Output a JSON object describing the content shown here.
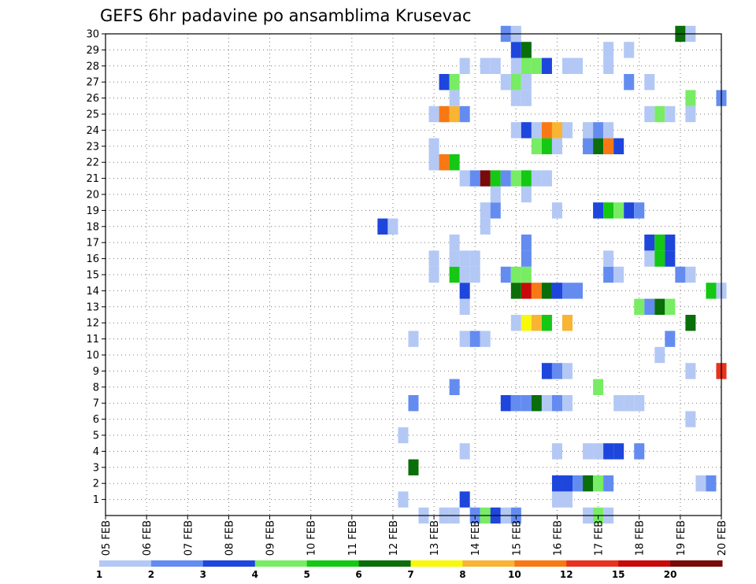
{
  "chart_data": {
    "type": "heatmap",
    "title": "GEFS 6hr padavine po ansamblima Krusevac",
    "x_tick_labels": [
      "05 FEB",
      "06 FEB",
      "07 FEB",
      "08 FEB",
      "09 FEB",
      "10 FEB",
      "11 FEB",
      "12 FEB",
      "13 FEB",
      "14 FEB",
      "15 FEB",
      "16 FEB",
      "17 FEB",
      "18 FEB",
      "19 FEB",
      "20 FEB"
    ],
    "y_tick_labels": [
      "1",
      "2",
      "3",
      "4",
      "5",
      "6",
      "7",
      "8",
      "9",
      "10",
      "11",
      "12",
      "13",
      "14",
      "15",
      "16",
      "17",
      "18",
      "19",
      "20",
      "21",
      "22",
      "23",
      "24",
      "25",
      "26",
      "27",
      "28",
      "29",
      "30"
    ],
    "x_unit": "6-hour step from 05 FEB 00Z",
    "xlim": [
      0,
      60
    ],
    "ylim": [
      0,
      30
    ],
    "grid": true,
    "legend": {
      "position": "bottom",
      "labels": [
        "1",
        "2",
        "3",
        "4",
        "5",
        "6",
        "7",
        "8",
        "10",
        "12",
        "15",
        "20"
      ],
      "colors": [
        "#b4c8f5",
        "#648cf0",
        "#1e46dc",
        "#78ec64",
        "#14c814",
        "#0a6e0a",
        "#f8f80a",
        "#f8b432",
        "#f87814",
        "#e6321e",
        "#c80a0a",
        "#780a0a"
      ]
    },
    "cells": [
      [
        31,
        0,
        0
      ],
      [
        33,
        0,
        0
      ],
      [
        34,
        0,
        0
      ],
      [
        36,
        0,
        1
      ],
      [
        37,
        0,
        3
      ],
      [
        38,
        0,
        2
      ],
      [
        39,
        0,
        0
      ],
      [
        40,
        0,
        1
      ],
      [
        47,
        0,
        0
      ],
      [
        48,
        0,
        3
      ],
      [
        49,
        0,
        0
      ],
      [
        29,
        1,
        0
      ],
      [
        35,
        1,
        2
      ],
      [
        44,
        1,
        0
      ],
      [
        45,
        1,
        0
      ],
      [
        44,
        2,
        2
      ],
      [
        45,
        2,
        2
      ],
      [
        46,
        2,
        1
      ],
      [
        47,
        2,
        5
      ],
      [
        48,
        2,
        3
      ],
      [
        49,
        2,
        1
      ],
      [
        58,
        2,
        0
      ],
      [
        59,
        2,
        1
      ],
      [
        30,
        3,
        5
      ],
      [
        35,
        4,
        0
      ],
      [
        44,
        4,
        0
      ],
      [
        47,
        4,
        0
      ],
      [
        48,
        4,
        0
      ],
      [
        49,
        4,
        2
      ],
      [
        50,
        4,
        2
      ],
      [
        52,
        4,
        1
      ],
      [
        29,
        5,
        0
      ],
      [
        57,
        6,
        0
      ],
      [
        30,
        7,
        1
      ],
      [
        39,
        7,
        2
      ],
      [
        40,
        7,
        1
      ],
      [
        41,
        7,
        1
      ],
      [
        42,
        7,
        5
      ],
      [
        43,
        7,
        0
      ],
      [
        44,
        7,
        1
      ],
      [
        45,
        7,
        0
      ],
      [
        50,
        7,
        0
      ],
      [
        51,
        7,
        0
      ],
      [
        52,
        7,
        0
      ],
      [
        34,
        8,
        1
      ],
      [
        48,
        8,
        3
      ],
      [
        43,
        9,
        2
      ],
      [
        44,
        9,
        1
      ],
      [
        45,
        9,
        0
      ],
      [
        57,
        9,
        0
      ],
      [
        60,
        9,
        9
      ],
      [
        54,
        10,
        0
      ],
      [
        30,
        11,
        0
      ],
      [
        35,
        11,
        0
      ],
      [
        36,
        11,
        1
      ],
      [
        37,
        11,
        0
      ],
      [
        55,
        11,
        1
      ],
      [
        40,
        12,
        0
      ],
      [
        41,
        12,
        6
      ],
      [
        42,
        12,
        7
      ],
      [
        43,
        12,
        4
      ],
      [
        45,
        12,
        7
      ],
      [
        57,
        12,
        5
      ],
      [
        35,
        13,
        0
      ],
      [
        52,
        13,
        3
      ],
      [
        53,
        13,
        1
      ],
      [
        54,
        13,
        5
      ],
      [
        55,
        13,
        3
      ],
      [
        35,
        14,
        2
      ],
      [
        40,
        14,
        5
      ],
      [
        41,
        14,
        10
      ],
      [
        42,
        14,
        8
      ],
      [
        43,
        14,
        5
      ],
      [
        44,
        14,
        2
      ],
      [
        45,
        14,
        1
      ],
      [
        46,
        14,
        1
      ],
      [
        59,
        14,
        4
      ],
      [
        60,
        14,
        0
      ],
      [
        32,
        15,
        0
      ],
      [
        34,
        15,
        4
      ],
      [
        35,
        15,
        0
      ],
      [
        36,
        15,
        0
      ],
      [
        39,
        15,
        1
      ],
      [
        40,
        15,
        3
      ],
      [
        41,
        15,
        3
      ],
      [
        49,
        15,
        1
      ],
      [
        50,
        15,
        0
      ],
      [
        56,
        15,
        1
      ],
      [
        57,
        15,
        0
      ],
      [
        32,
        16,
        0
      ],
      [
        34,
        16,
        0
      ],
      [
        35,
        16,
        0
      ],
      [
        36,
        16,
        0
      ],
      [
        41,
        16,
        1
      ],
      [
        49,
        16,
        0
      ],
      [
        53,
        16,
        0
      ],
      [
        54,
        16,
        4
      ],
      [
        55,
        16,
        2
      ],
      [
        34,
        17,
        0
      ],
      [
        41,
        17,
        1
      ],
      [
        53,
        17,
        2
      ],
      [
        54,
        17,
        4
      ],
      [
        55,
        17,
        2
      ],
      [
        27,
        18,
        2
      ],
      [
        28,
        18,
        0
      ],
      [
        37,
        18,
        0
      ],
      [
        37,
        19,
        0
      ],
      [
        38,
        19,
        1
      ],
      [
        44,
        19,
        0
      ],
      [
        48,
        19,
        2
      ],
      [
        49,
        19,
        4
      ],
      [
        50,
        19,
        3
      ],
      [
        51,
        19,
        2
      ],
      [
        52,
        19,
        1
      ],
      [
        38,
        20,
        0
      ],
      [
        41,
        20,
        0
      ],
      [
        35,
        21,
        0
      ],
      [
        36,
        21,
        1
      ],
      [
        37,
        21,
        11
      ],
      [
        38,
        21,
        4
      ],
      [
        39,
        21,
        1
      ],
      [
        40,
        21,
        3
      ],
      [
        41,
        21,
        4
      ],
      [
        42,
        21,
        0
      ],
      [
        43,
        21,
        0
      ],
      [
        32,
        22,
        0
      ],
      [
        33,
        22,
        8
      ],
      [
        34,
        22,
        4
      ],
      [
        32,
        23,
        0
      ],
      [
        42,
        23,
        3
      ],
      [
        43,
        23,
        4
      ],
      [
        44,
        23,
        0
      ],
      [
        47,
        23,
        1
      ],
      [
        48,
        23,
        5
      ],
      [
        49,
        23,
        8
      ],
      [
        50,
        23,
        2
      ],
      [
        40,
        24,
        0
      ],
      [
        41,
        24,
        2
      ],
      [
        42,
        24,
        0
      ],
      [
        43,
        24,
        8
      ],
      [
        44,
        24,
        7
      ],
      [
        45,
        24,
        0
      ],
      [
        47,
        24,
        0
      ],
      [
        48,
        24,
        1
      ],
      [
        49,
        24,
        0
      ],
      [
        32,
        25,
        0
      ],
      [
        33,
        25,
        8
      ],
      [
        34,
        25,
        7
      ],
      [
        35,
        25,
        1
      ],
      [
        53,
        25,
        0
      ],
      [
        54,
        25,
        3
      ],
      [
        55,
        25,
        0
      ],
      [
        57,
        25,
        0
      ],
      [
        34,
        26,
        0
      ],
      [
        40,
        26,
        0
      ],
      [
        41,
        26,
        0
      ],
      [
        57,
        26,
        3
      ],
      [
        60,
        26,
        1
      ],
      [
        33,
        27,
        2
      ],
      [
        34,
        27,
        3
      ],
      [
        39,
        27,
        0
      ],
      [
        40,
        27,
        3
      ],
      [
        41,
        27,
        0
      ],
      [
        51,
        27,
        1
      ],
      [
        53,
        27,
        0
      ],
      [
        35,
        28,
        0
      ],
      [
        37,
        28,
        0
      ],
      [
        38,
        28,
        0
      ],
      [
        40,
        28,
        0
      ],
      [
        41,
        28,
        3
      ],
      [
        42,
        28,
        3
      ],
      [
        43,
        28,
        2
      ],
      [
        45,
        28,
        0
      ],
      [
        46,
        28,
        0
      ],
      [
        49,
        28,
        0
      ],
      [
        40,
        29,
        2
      ],
      [
        41,
        29,
        5
      ],
      [
        49,
        29,
        0
      ],
      [
        51,
        29,
        0
      ],
      [
        39,
        30,
        1
      ],
      [
        40,
        30,
        0
      ],
      [
        56,
        30,
        5
      ],
      [
        57,
        30,
        0
      ]
    ]
  }
}
